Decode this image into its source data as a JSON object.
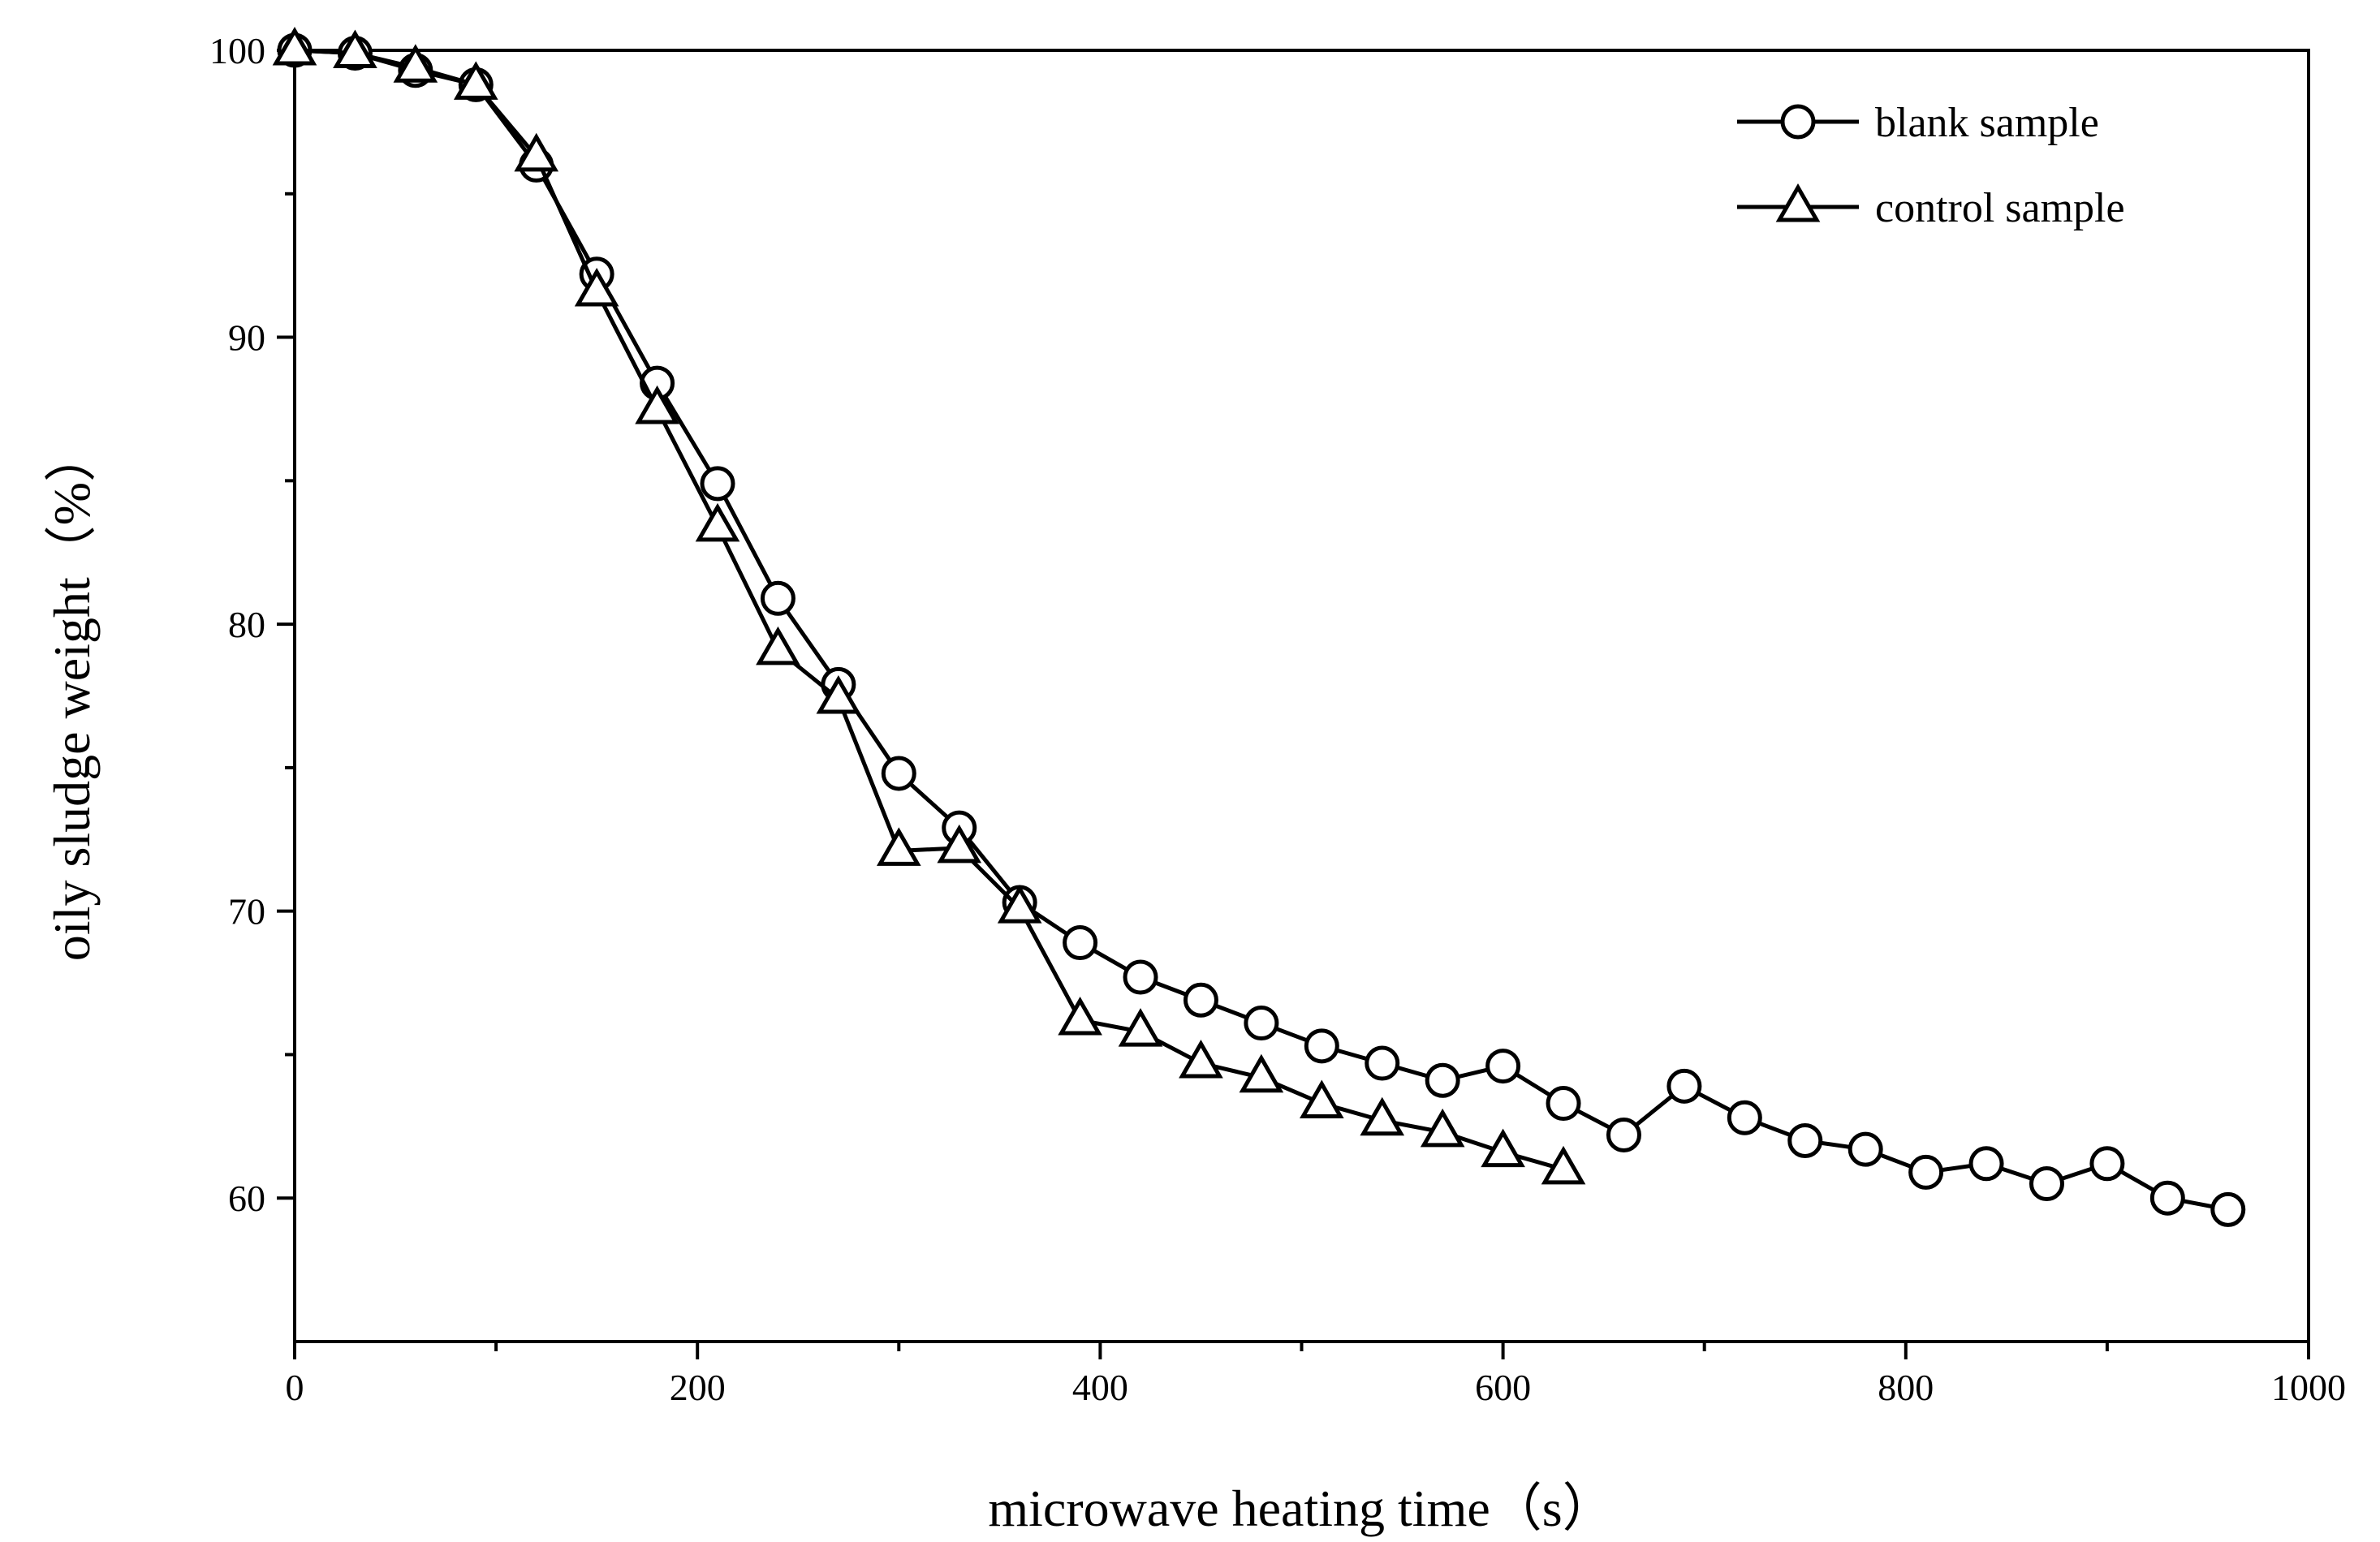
{
  "chart_data": {
    "type": "line",
    "title": "",
    "xlabel": "microwave heating time（s）",
    "ylabel": "oily sludge weight（%）",
    "xlim": [
      0,
      1000
    ],
    "ylim": [
      55,
      100
    ],
    "xticks": [
      0,
      200,
      400,
      600,
      800,
      1000
    ],
    "yticks": [
      60,
      70,
      80,
      90,
      100
    ],
    "xminor": [
      100,
      300,
      500,
      700,
      900
    ],
    "yminor": [
      65,
      75,
      85,
      95
    ],
    "grid": false,
    "legend_position": "top-right",
    "series": [
      {
        "name": "blank sample",
        "marker": "circle",
        "x": [
          0,
          30,
          60,
          90,
          120,
          150,
          180,
          210,
          240,
          270,
          300,
          330,
          360,
          390,
          420,
          450,
          480,
          510,
          540,
          570,
          600,
          630,
          660,
          690,
          720,
          750,
          780,
          810,
          840,
          870,
          900,
          930,
          960
        ],
        "y": [
          100.0,
          99.9,
          99.3,
          98.8,
          96.0,
          92.2,
          88.4,
          84.9,
          80.9,
          77.9,
          74.8,
          72.9,
          70.3,
          68.9,
          67.7,
          66.9,
          66.1,
          65.3,
          64.7,
          64.1,
          64.6,
          63.3,
          62.2,
          63.9,
          62.8,
          62.0,
          61.7,
          60.9,
          61.2,
          60.5,
          61.2,
          60.0,
          59.6
        ]
      },
      {
        "name": "control sample",
        "marker": "triangle",
        "x": [
          0,
          30,
          60,
          90,
          120,
          150,
          180,
          210,
          240,
          270,
          300,
          330,
          360,
          390,
          420,
          450,
          480,
          510,
          540,
          570,
          600,
          630
        ],
        "y": [
          100.0,
          99.9,
          99.4,
          98.8,
          96.3,
          91.6,
          87.5,
          83.4,
          79.1,
          77.4,
          72.1,
          72.2,
          70.1,
          66.2,
          65.8,
          64.7,
          64.2,
          63.3,
          62.7,
          62.3,
          61.6,
          61.0
        ]
      }
    ]
  }
}
